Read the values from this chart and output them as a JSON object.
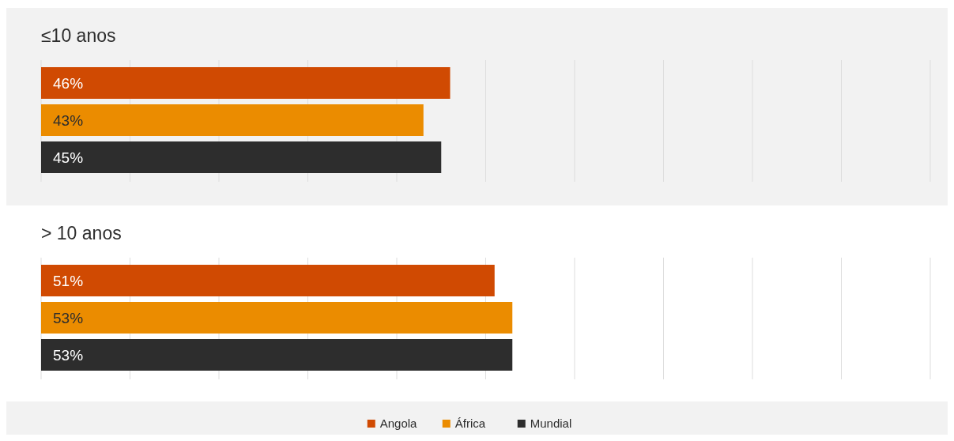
{
  "chart_data": [
    {
      "type": "bar",
      "orientation": "horizontal",
      "title": "≤10 anos",
      "categories": [
        null
      ],
      "series": [
        {
          "name": "Angola",
          "color": "#d04a02",
          "values": [
            46
          ],
          "value_labels": [
            "46%"
          ]
        },
        {
          "name": "África",
          "color": "#eb8c00",
          "values": [
            43
          ],
          "value_labels": [
            "43%"
          ]
        },
        {
          "name": "Mundial",
          "color": "#2d2d2d",
          "values": [
            45
          ],
          "value_labels": [
            "45%"
          ]
        }
      ],
      "xlim": [
        0,
        100
      ],
      "xticks": [
        {
          "value": 0,
          "label": null
        },
        {
          "value": 10,
          "label": null
        },
        {
          "value": 20,
          "label": null
        },
        {
          "value": 30,
          "label": null
        },
        {
          "value": 40,
          "label": null
        },
        {
          "value": 50,
          "label": null
        },
        {
          "value": 60,
          "label": null
        },
        {
          "value": 70,
          "label": null
        },
        {
          "value": 80,
          "label": null
        },
        {
          "value": 90,
          "label": null
        },
        {
          "value": 100,
          "label": null
        }
      ],
      "grid": "x",
      "legend": "bottom"
    },
    {
      "type": "bar",
      "orientation": "horizontal",
      "title": "> 10 anos",
      "categories": [
        null
      ],
      "series": [
        {
          "color": "#d04a02",
          "values": [
            51
          ],
          "value_labels": [
            "51%"
          ]
        },
        {
          "color": "#eb8c00",
          "values": [
            53
          ],
          "value_labels": [
            "53%"
          ]
        },
        {
          "color": "#2d2d2d",
          "values": [
            53
          ],
          "value_labels": [
            "53%"
          ]
        }
      ],
      "xlim": [
        0,
        100
      ],
      "xticks": [
        {
          "value": 0,
          "label": null
        },
        {
          "value": 10,
          "label": null
        },
        {
          "value": 20,
          "label": null
        },
        {
          "value": 30,
          "label": null
        },
        {
          "value": 40,
          "label": null
        },
        {
          "value": 50,
          "label": null
        },
        {
          "value": 60,
          "label": null
        },
        {
          "value": 70,
          "label": null
        },
        {
          "value": 80,
          "label": null
        },
        {
          "value": 90,
          "label": null
        },
        {
          "value": 100,
          "label": null
        }
      ],
      "grid": "x"
    }
  ]
}
